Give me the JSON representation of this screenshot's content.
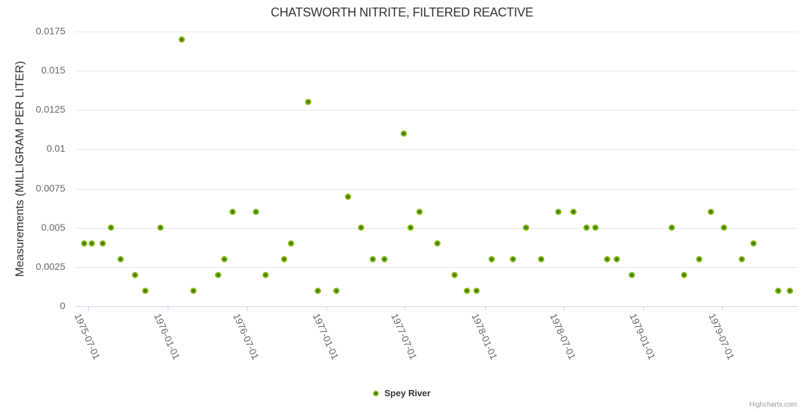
{
  "colors": {
    "point_ring": "#7db40a",
    "point_core": "#3f7004",
    "grid": "#e6e6e6",
    "axis": "#ccd6eb",
    "title_text": "#333333",
    "label_text": "#666666",
    "credits_text": "#999999"
  },
  "legend": {
    "label": "Spey River"
  },
  "credits": "Highcharts.com",
  "chart_data": {
    "type": "scatter",
    "title": "CHATSWORTH NITRITE, FILTERED REACTIVE",
    "xlabel": "",
    "ylabel": "Measurements (MILLIGRAM PER LITER)",
    "ylim": [
      0,
      0.0175
    ],
    "y_tick_interval": 0.0025,
    "y_ticks": [
      "0",
      "0.0025",
      "0.005",
      "0.0075",
      "0.01",
      "0.0125",
      "0.015",
      "0.0175"
    ],
    "x_ticks": [
      "1975-07-01",
      "1976-01-01",
      "1976-07-01",
      "1977-01-01",
      "1977-07-01",
      "1978-01-01",
      "1978-07-01",
      "1979-01-01",
      "1979-07-01"
    ],
    "grid": "horizontal-only",
    "legend_position": "bottom-center",
    "series": [
      {
        "name": "Spey River",
        "marker_color": "#7db40a",
        "points": [
          {
            "date": "1975-06-23",
            "value": 0.004
          },
          {
            "date": "1975-07-10",
            "value": 0.004
          },
          {
            "date": "1975-08-04",
            "value": 0.004
          },
          {
            "date": "1975-08-23",
            "value": 0.005
          },
          {
            "date": "1975-09-14",
            "value": 0.003
          },
          {
            "date": "1975-10-18",
            "value": 0.002
          },
          {
            "date": "1975-11-11",
            "value": 0.001
          },
          {
            "date": "1975-12-15",
            "value": 0.005
          },
          {
            "date": "1976-02-02",
            "value": 0.017
          },
          {
            "date": "1976-02-29",
            "value": 0.001
          },
          {
            "date": "1976-04-26",
            "value": 0.002
          },
          {
            "date": "1976-05-10",
            "value": 0.003
          },
          {
            "date": "1976-05-30",
            "value": 0.006
          },
          {
            "date": "1976-07-23",
            "value": 0.006
          },
          {
            "date": "1976-08-13",
            "value": 0.002
          },
          {
            "date": "1976-09-25",
            "value": 0.003
          },
          {
            "date": "1976-10-11",
            "value": 0.004
          },
          {
            "date": "1976-11-20",
            "value": 0.013
          },
          {
            "date": "1976-12-12",
            "value": 0.001
          },
          {
            "date": "1977-01-24",
            "value": 0.001
          },
          {
            "date": "1977-02-19",
            "value": 0.007
          },
          {
            "date": "1977-03-21",
            "value": 0.005
          },
          {
            "date": "1977-04-17",
            "value": 0.003
          },
          {
            "date": "1977-05-15",
            "value": 0.003
          },
          {
            "date": "1977-06-28",
            "value": 0.011
          },
          {
            "date": "1977-07-13",
            "value": 0.005
          },
          {
            "date": "1977-08-03",
            "value": 0.006
          },
          {
            "date": "1977-09-13",
            "value": 0.004
          },
          {
            "date": "1977-10-23",
            "value": 0.002
          },
          {
            "date": "1977-11-21",
            "value": 0.001
          },
          {
            "date": "1977-12-13",
            "value": 0.001
          },
          {
            "date": "1978-01-17",
            "value": 0.003
          },
          {
            "date": "1978-03-06",
            "value": 0.003
          },
          {
            "date": "1978-04-05",
            "value": 0.005
          },
          {
            "date": "1978-05-10",
            "value": 0.003
          },
          {
            "date": "1978-06-19",
            "value": 0.006
          },
          {
            "date": "1978-07-24",
            "value": 0.006
          },
          {
            "date": "1978-08-23",
            "value": 0.005
          },
          {
            "date": "1978-09-13",
            "value": 0.005
          },
          {
            "date": "1978-10-10",
            "value": 0.003
          },
          {
            "date": "1978-10-31",
            "value": 0.003
          },
          {
            "date": "1978-12-05",
            "value": 0.002
          },
          {
            "date": "1979-03-08",
            "value": 0.005
          },
          {
            "date": "1979-04-04",
            "value": 0.002
          },
          {
            "date": "1979-05-09",
            "value": 0.003
          },
          {
            "date": "1979-06-06",
            "value": 0.006
          },
          {
            "date": "1979-07-05",
            "value": 0.005
          },
          {
            "date": "1979-08-16",
            "value": 0.003
          },
          {
            "date": "1979-09-11",
            "value": 0.004
          },
          {
            "date": "1979-11-07",
            "value": 0.001
          },
          {
            "date": "1979-12-05",
            "value": 0.001
          }
        ]
      }
    ]
  }
}
